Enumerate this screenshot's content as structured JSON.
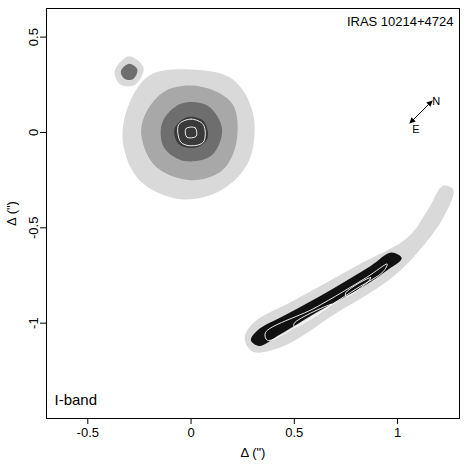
{
  "chart_data": {
    "type": "image",
    "title": "IRAS 10214+4724",
    "annotation": "I-band",
    "xlabel": "Δ (\")",
    "ylabel": "Δ (\")",
    "xlim": [
      -0.7,
      1.3
    ],
    "ylim": [
      -1.5,
      0.65
    ],
    "xticks": [
      -0.5,
      0,
      0.5,
      1
    ],
    "yticks": [
      -1,
      -0.5,
      0,
      0.5
    ],
    "compass": {
      "labels": [
        "N",
        "E"
      ]
    },
    "colors": [
      "#d9d9d9",
      "#a8a8a8",
      "#6e6e6e",
      "#3a3a3a",
      "#111111"
    ],
    "emission": [
      {
        "level": 1,
        "points": [
          [
            -0.3,
            0.15
          ],
          [
            -0.2,
            0.3
          ],
          [
            0,
            0.33
          ],
          [
            0.2,
            0.28
          ],
          [
            0.3,
            0.1
          ],
          [
            0.28,
            -0.15
          ],
          [
            0.15,
            -0.3
          ],
          [
            -0.05,
            -0.35
          ],
          [
            -0.25,
            -0.25
          ],
          [
            -0.33,
            -0.05
          ]
        ]
      },
      {
        "level": 1,
        "points": [
          [
            -0.37,
            0.32
          ],
          [
            -0.3,
            0.4
          ],
          [
            -0.23,
            0.34
          ],
          [
            -0.27,
            0.25
          ],
          [
            -0.34,
            0.25
          ]
        ]
      },
      {
        "level": 1,
        "points": [
          [
            0.3,
            -1.0
          ],
          [
            0.5,
            -0.88
          ],
          [
            0.8,
            -0.7
          ],
          [
            1.05,
            -0.55
          ],
          [
            1.15,
            -0.4
          ],
          [
            1.22,
            -0.28
          ],
          [
            1.27,
            -0.3
          ],
          [
            1.22,
            -0.45
          ],
          [
            1.08,
            -0.65
          ],
          [
            0.95,
            -0.78
          ],
          [
            0.7,
            -0.95
          ],
          [
            0.45,
            -1.12
          ],
          [
            0.3,
            -1.15
          ],
          [
            0.26,
            -1.08
          ]
        ]
      },
      {
        "level": 2,
        "points": [
          [
            -0.22,
            0.1
          ],
          [
            -0.12,
            0.22
          ],
          [
            0.05,
            0.24
          ],
          [
            0.2,
            0.15
          ],
          [
            0.22,
            -0.05
          ],
          [
            0.15,
            -0.2
          ],
          [
            0,
            -0.25
          ],
          [
            -0.17,
            -0.18
          ],
          [
            -0.24,
            -0.02
          ]
        ]
      },
      {
        "level": 3,
        "points": [
          [
            -0.14,
            0.05
          ],
          [
            -0.05,
            0.15
          ],
          [
            0.08,
            0.14
          ],
          [
            0.15,
            0.02
          ],
          [
            0.1,
            -0.12
          ],
          [
            -0.03,
            -0.15
          ],
          [
            -0.13,
            -0.08
          ]
        ]
      },
      {
        "level": 3,
        "points": [
          [
            -0.34,
            0.32
          ],
          [
            -0.3,
            0.36
          ],
          [
            -0.26,
            0.33
          ],
          [
            -0.28,
            0.28
          ],
          [
            -0.32,
            0.28
          ]
        ]
      },
      {
        "level": 4,
        "points": [
          [
            -0.08,
            0.02
          ],
          [
            -0.02,
            0.08
          ],
          [
            0.06,
            0.06
          ],
          [
            0.08,
            -0.03
          ],
          [
            0.02,
            -0.08
          ],
          [
            -0.06,
            -0.06
          ]
        ]
      },
      {
        "level": 5,
        "points": [
          [
            0.32,
            -1.04
          ],
          [
            0.47,
            -0.95
          ],
          [
            0.67,
            -0.83
          ],
          [
            0.87,
            -0.7
          ],
          [
            0.97,
            -0.63
          ],
          [
            1.02,
            -0.66
          ],
          [
            0.94,
            -0.73
          ],
          [
            0.83,
            -0.81
          ],
          [
            0.63,
            -0.93
          ],
          [
            0.43,
            -1.06
          ],
          [
            0.33,
            -1.12
          ],
          [
            0.29,
            -1.09
          ]
        ]
      }
    ],
    "contours": [
      [
        [
          -0.06,
          0.04
        ],
        [
          0.0,
          0.07
        ],
        [
          0.06,
          0.04
        ],
        [
          0.06,
          -0.05
        ],
        [
          0.0,
          -0.07
        ],
        [
          -0.05,
          -0.05
        ]
      ],
      [
        [
          -0.025,
          0.02
        ],
        [
          0.02,
          0.025
        ],
        [
          0.025,
          -0.02
        ],
        [
          -0.02,
          -0.025
        ]
      ],
      [
        [
          0.36,
          -1.05
        ],
        [
          0.6,
          -0.92
        ],
        [
          0.85,
          -0.76
        ],
        [
          0.95,
          -0.69
        ],
        [
          0.93,
          -0.73
        ],
        [
          0.8,
          -0.82
        ],
        [
          0.55,
          -0.99
        ],
        [
          0.37,
          -1.09
        ]
      ],
      [
        [
          0.5,
          -1.0
        ],
        [
          0.68,
          -0.9
        ],
        [
          0.66,
          -0.92
        ],
        [
          0.5,
          -1.02
        ]
      ],
      [
        [
          0.75,
          -0.84
        ],
        [
          0.87,
          -0.76
        ],
        [
          0.86,
          -0.78
        ],
        [
          0.75,
          -0.86
        ]
      ]
    ]
  }
}
